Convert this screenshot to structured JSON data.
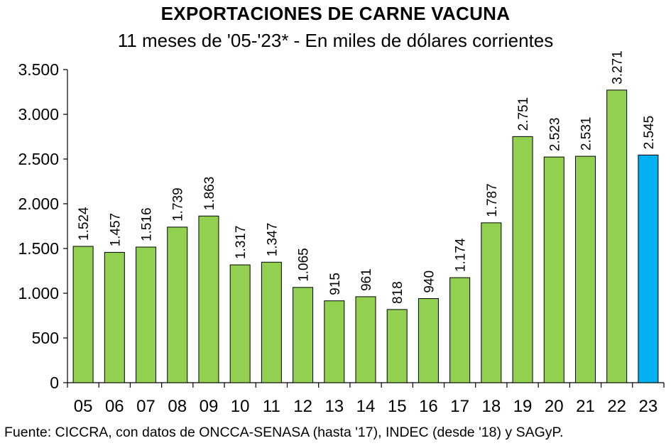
{
  "chart_data": {
    "type": "bar",
    "title": "EXPORTACIONES DE CARNE VACUNA",
    "subtitle": "11 meses de '05-'23* - En miles de dólares corrientes",
    "categories": [
      "05",
      "06",
      "07",
      "08",
      "09",
      "10",
      "11",
      "12",
      "13",
      "14",
      "15",
      "16",
      "17",
      "18",
      "19",
      "20",
      "21",
      "22",
      "23"
    ],
    "values": [
      1524,
      1457,
      1516,
      1739,
      1863,
      1317,
      1347,
      1065,
      915,
      961,
      818,
      940,
      1174,
      1787,
      2751,
      2523,
      2531,
      3271,
      2545
    ],
    "value_labels": [
      "1.524",
      "1.457",
      "1.516",
      "1.739",
      "1.863",
      "1.317",
      "1.347",
      "1.065",
      "915",
      "961",
      "818",
      "940",
      "1.174",
      "1.787",
      "2.751",
      "2.523",
      "2.531",
      "3.271",
      "2.545"
    ],
    "ylim": [
      0,
      3500
    ],
    "yticks": [
      0,
      500,
      1000,
      1500,
      2000,
      2500,
      3000,
      3500
    ],
    "ytick_labels": [
      "0",
      "500",
      "1.000",
      "1.500",
      "2.000",
      "2.500",
      "3.000",
      "3.500"
    ],
    "xlabel": "",
    "ylabel": "",
    "grid": false,
    "legend": "none",
    "colors": {
      "default_bar": "#92d050",
      "highlight_bar": "#00b0f0",
      "highlight_category": "23",
      "bar_border": "#000000"
    }
  },
  "source_note": "Fuente: CICCRA, con datos de ONCCA-SENASA (hasta '17), INDEC (desde '18) y SAGyP."
}
